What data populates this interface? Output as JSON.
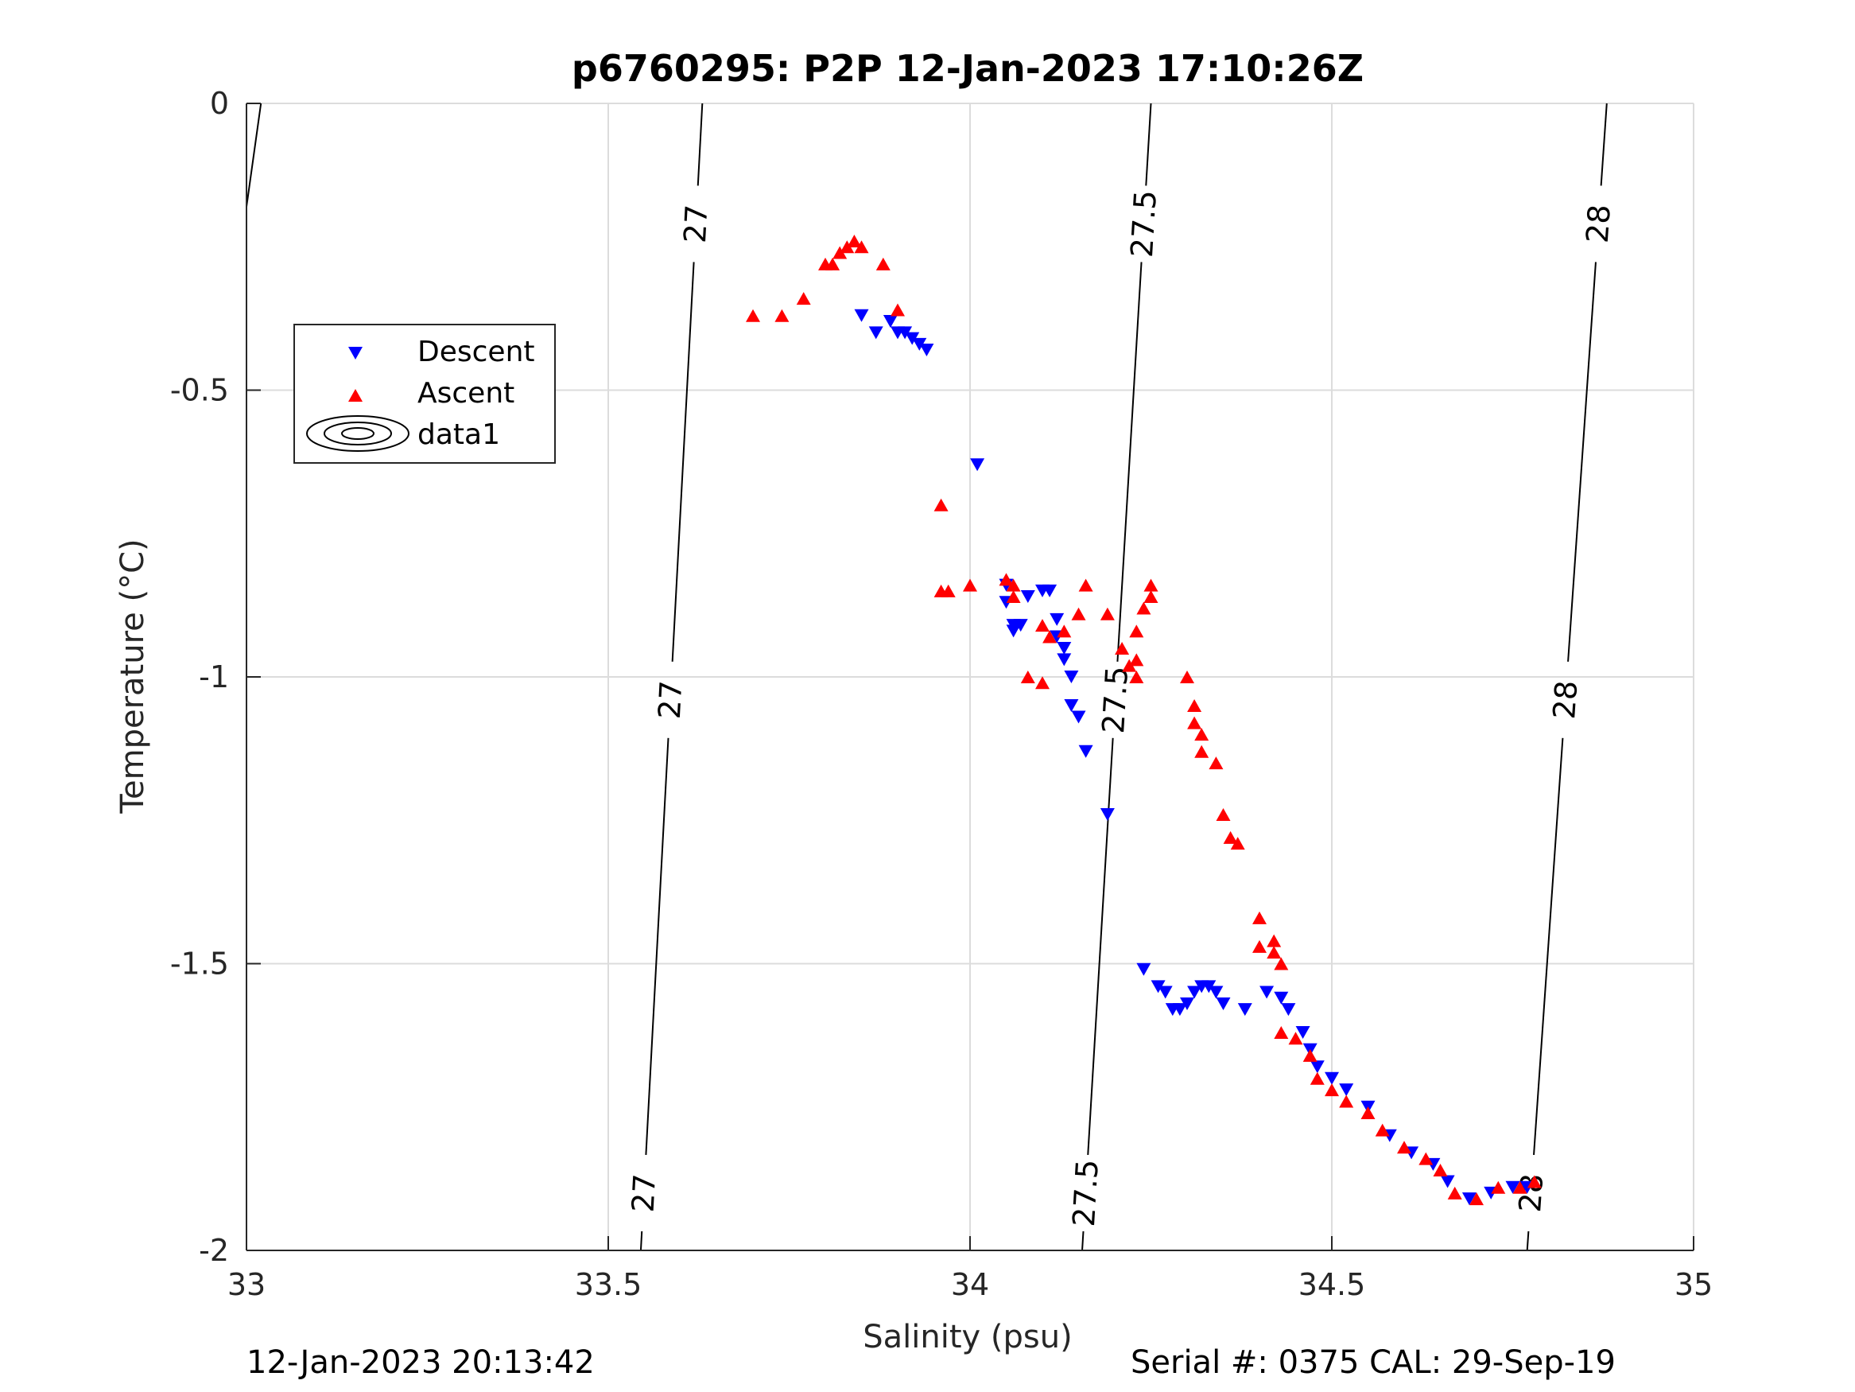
{
  "chart_data": {
    "type": "scatter",
    "title": "p6760295: P2P 12-Jan-2023 17:10:26Z",
    "xlabel": "Salinity (psu)",
    "ylabel": "Temperature (°C)",
    "xlim": [
      33,
      35
    ],
    "ylim": [
      -2,
      0
    ],
    "x_ticks": [
      33,
      33.5,
      34,
      34.5,
      35
    ],
    "x_tick_labels": [
      "33",
      "33.5",
      "34",
      "34.5",
      "35"
    ],
    "y_ticks": [
      0,
      -0.5,
      -1,
      -1.5,
      -2
    ],
    "y_tick_labels": [
      "0",
      "-0.5",
      "-1",
      "-1.5",
      "-2"
    ],
    "grid": true,
    "legend_position": "upper-left",
    "legend": [
      "Descent",
      "Ascent",
      "data1"
    ],
    "series": [
      {
        "name": "Descent",
        "marker": "triangle-down",
        "color": "#0000ff",
        "points": [
          [
            33.85,
            -0.37
          ],
          [
            33.87,
            -0.4
          ],
          [
            33.89,
            -0.38
          ],
          [
            33.9,
            -0.4
          ],
          [
            33.91,
            -0.4
          ],
          [
            33.92,
            -0.41
          ],
          [
            33.93,
            -0.42
          ],
          [
            33.94,
            -0.43
          ],
          [
            34.01,
            -0.63
          ],
          [
            34.05,
            -0.84
          ],
          [
            34.05,
            -0.87
          ],
          [
            34.06,
            -0.91
          ],
          [
            34.07,
            -0.91
          ],
          [
            34.06,
            -0.92
          ],
          [
            34.08,
            -0.86
          ],
          [
            34.1,
            -0.85
          ],
          [
            34.11,
            -0.85
          ],
          [
            34.12,
            -0.9
          ],
          [
            34.12,
            -0.93
          ],
          [
            34.13,
            -0.95
          ],
          [
            34.13,
            -0.97
          ],
          [
            34.14,
            -1.0
          ],
          [
            34.14,
            -1.05
          ],
          [
            34.15,
            -1.07
          ],
          [
            34.16,
            -1.13
          ],
          [
            34.19,
            -1.24
          ],
          [
            34.24,
            -1.51
          ],
          [
            34.26,
            -1.54
          ],
          [
            34.27,
            -1.55
          ],
          [
            34.28,
            -1.58
          ],
          [
            34.29,
            -1.58
          ],
          [
            34.3,
            -1.57
          ],
          [
            34.31,
            -1.55
          ],
          [
            34.32,
            -1.54
          ],
          [
            34.33,
            -1.54
          ],
          [
            34.34,
            -1.55
          ],
          [
            34.35,
            -1.57
          ],
          [
            34.38,
            -1.58
          ],
          [
            34.41,
            -1.55
          ],
          [
            34.43,
            -1.56
          ],
          [
            34.44,
            -1.58
          ],
          [
            34.46,
            -1.62
          ],
          [
            34.47,
            -1.65
          ],
          [
            34.48,
            -1.68
          ],
          [
            34.5,
            -1.7
          ],
          [
            34.52,
            -1.72
          ],
          [
            34.55,
            -1.75
          ],
          [
            34.58,
            -1.8
          ],
          [
            34.61,
            -1.83
          ],
          [
            34.64,
            -1.85
          ],
          [
            34.66,
            -1.88
          ],
          [
            34.69,
            -1.91
          ],
          [
            34.72,
            -1.9
          ],
          [
            34.75,
            -1.89
          ],
          [
            34.77,
            -1.89
          ]
        ]
      },
      {
        "name": "Ascent",
        "marker": "triangle-up",
        "color": "#ff0000",
        "points": [
          [
            33.7,
            -0.37
          ],
          [
            33.74,
            -0.37
          ],
          [
            33.77,
            -0.34
          ],
          [
            33.8,
            -0.28
          ],
          [
            33.81,
            -0.28
          ],
          [
            33.82,
            -0.26
          ],
          [
            33.83,
            -0.25
          ],
          [
            33.84,
            -0.24
          ],
          [
            33.85,
            -0.25
          ],
          [
            33.88,
            -0.28
          ],
          [
            33.9,
            -0.36
          ],
          [
            33.96,
            -0.7
          ],
          [
            33.96,
            -0.85
          ],
          [
            33.97,
            -0.85
          ],
          [
            34.0,
            -0.84
          ],
          [
            34.05,
            -0.83
          ],
          [
            34.06,
            -0.84
          ],
          [
            34.06,
            -0.86
          ],
          [
            34.08,
            -1.0
          ],
          [
            34.1,
            -1.01
          ],
          [
            34.1,
            -0.91
          ],
          [
            34.11,
            -0.93
          ],
          [
            34.13,
            -0.92
          ],
          [
            34.15,
            -0.89
          ],
          [
            34.16,
            -0.84
          ],
          [
            34.19,
            -0.89
          ],
          [
            34.21,
            -0.95
          ],
          [
            34.22,
            -0.98
          ],
          [
            34.23,
            -1.0
          ],
          [
            34.23,
            -0.97
          ],
          [
            34.23,
            -0.92
          ],
          [
            34.24,
            -0.88
          ],
          [
            34.25,
            -0.86
          ],
          [
            34.25,
            -0.84
          ],
          [
            34.3,
            -1.0
          ],
          [
            34.31,
            -1.05
          ],
          [
            34.31,
            -1.08
          ],
          [
            34.32,
            -1.1
          ],
          [
            34.32,
            -1.13
          ],
          [
            34.34,
            -1.15
          ],
          [
            34.35,
            -1.24
          ],
          [
            34.36,
            -1.28
          ],
          [
            34.37,
            -1.29
          ],
          [
            34.4,
            -1.42
          ],
          [
            34.4,
            -1.47
          ],
          [
            34.42,
            -1.48
          ],
          [
            34.42,
            -1.46
          ],
          [
            34.43,
            -1.5
          ],
          [
            34.43,
            -1.62
          ],
          [
            34.45,
            -1.63
          ],
          [
            34.47,
            -1.66
          ],
          [
            34.48,
            -1.7
          ],
          [
            34.5,
            -1.72
          ],
          [
            34.52,
            -1.74
          ],
          [
            34.55,
            -1.76
          ],
          [
            34.57,
            -1.79
          ],
          [
            34.6,
            -1.82
          ],
          [
            34.63,
            -1.84
          ],
          [
            34.65,
            -1.86
          ],
          [
            34.67,
            -1.9
          ],
          [
            34.7,
            -1.91
          ],
          [
            34.73,
            -1.89
          ],
          [
            34.76,
            -1.89
          ],
          [
            34.78,
            -1.88
          ]
        ]
      }
    ],
    "contours": {
      "name": "data1",
      "lines": [
        {
          "x_top": 33.02,
          "x_bottom": 33.0,
          "segments": []
        },
        {
          "label": "27",
          "x_top": 33.63,
          "x_bottom": 33.545,
          "label_y": [
            -0.21,
            -1.04,
            -1.9
          ]
        },
        {
          "label": "27.5",
          "x_top": 34.25,
          "x_bottom": 34.155,
          "label_y": [
            -0.21,
            -1.04,
            -1.9
          ]
        },
        {
          "label": "28",
          "x_top": 34.88,
          "x_bottom": 34.77,
          "label_y": [
            -0.21,
            -1.04,
            -1.9
          ]
        }
      ]
    }
  },
  "footer": {
    "left": "12-Jan-2023 20:13:42",
    "right": "Serial #: 0375  CAL: 29-Sep-19"
  }
}
